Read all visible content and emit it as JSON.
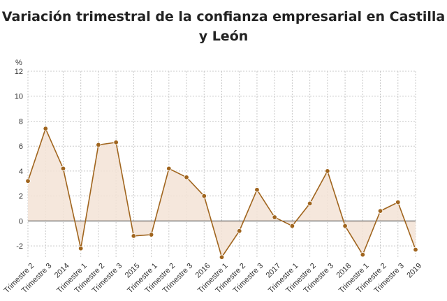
{
  "chart_data": {
    "type": "area",
    "title_lines": [
      "Variación trimestral de la confianza empresarial en Castilla",
      "y León"
    ],
    "unit_label": "%",
    "ylim": [
      -3,
      12
    ],
    "yticks": [
      -2,
      0,
      2,
      4,
      6,
      8,
      10,
      12
    ],
    "grid": true,
    "categories": [
      "Trimestre 2",
      "Trimestre 3",
      "2014",
      "Trimestre 1",
      "Trimestre 2",
      "Trimestre 3",
      "2015",
      "Trimestre 1",
      "Trimestre 2",
      "Trimestre 3",
      "2016",
      "Trimestre 1",
      "Trimestre 2",
      "Trimestre 3",
      "2017",
      "Trimestre 1",
      "Trimestre 2",
      "Trimestre 3",
      "2018",
      "Trimestre 1",
      "Trimestre 2",
      "Trimestre 3",
      "2019"
    ],
    "values": [
      3.2,
      7.4,
      4.2,
      -2.2,
      6.1,
      6.3,
      -1.2,
      -1.1,
      4.2,
      3.5,
      2.0,
      -2.9,
      -0.8,
      2.5,
      0.3,
      -0.4,
      1.4,
      4.0,
      -0.4,
      -2.7,
      0.8,
      1.5,
      -2.3
    ],
    "colors": {
      "line": "#a0651e",
      "marker": "#a0651e",
      "fill": "#f3e3d6",
      "grid": "#c8c8c8",
      "zero_line": "#333333"
    }
  }
}
